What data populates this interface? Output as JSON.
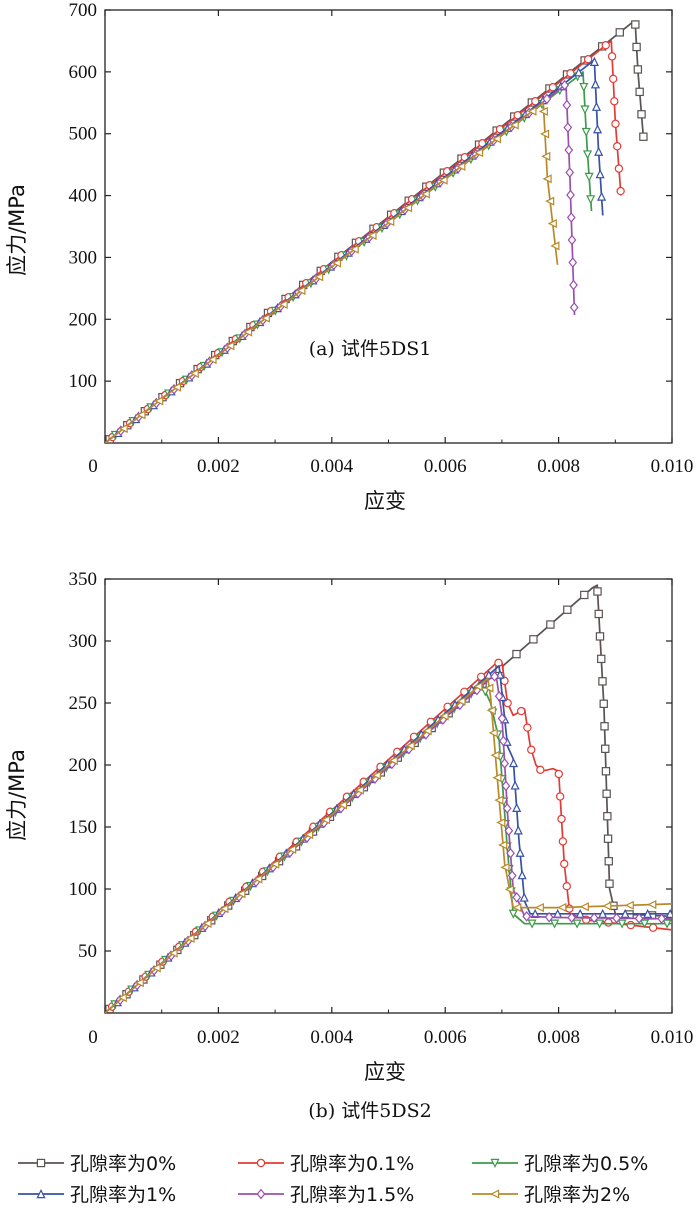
{
  "legend": [
    {
      "label": "孔隙率为0%",
      "color": "#5a5352",
      "marker": "square"
    },
    {
      "label": "孔隙率为0.1%",
      "color": "#e23b36",
      "marker": "circle"
    },
    {
      "label": "孔隙率为0.5%",
      "color": "#3c9a4a",
      "marker": "triangle-down"
    },
    {
      "label": "孔隙率为1%",
      "color": "#3651a8",
      "marker": "triangle-up"
    },
    {
      "label": "孔隙率为1.5%",
      "color": "#9a4fae",
      "marker": "diamond"
    },
    {
      "label": "孔隙率为2%",
      "color": "#b8892b",
      "marker": "triangle-left"
    }
  ],
  "chart_data": [
    {
      "type": "line",
      "caption": "(a) 试件5DS1",
      "xlabel": "应变",
      "ylabel": "应力/MPa",
      "xlim": [
        0,
        0.01
      ],
      "ylim": [
        0,
        700
      ],
      "xticks": [
        0,
        0.002,
        0.004,
        0.006,
        0.008,
        0.01
      ],
      "xtick_labels": [
        "0",
        "0.002",
        "0.004",
        "0.006",
        "0.008",
        "0.010"
      ],
      "yticks": [
        100,
        200,
        300,
        400,
        500,
        600,
        700
      ],
      "ytick_labels": [
        "100",
        "200",
        "300",
        "400",
        "500",
        "600",
        "700"
      ],
      "series": [
        {
          "name": "孔隙率为0%",
          "x": [
            0,
            0.0093,
            0.00935,
            0.0094,
            0.0095
          ],
          "y": [
            0,
            680,
            682,
            600,
            490
          ]
        },
        {
          "name": "孔隙率为0.1%",
          "x": [
            0,
            0.0089,
            0.00893,
            0.009,
            0.0091
          ],
          "y": [
            0,
            648,
            650,
            520,
            400
          ]
        },
        {
          "name": "孔隙率为0.5%",
          "x": [
            0,
            0.0084,
            0.00843,
            0.0085,
            0.00858
          ],
          "y": [
            0,
            597,
            600,
            480,
            375
          ]
        },
        {
          "name": "孔隙率为1%",
          "x": [
            0,
            0.0086,
            0.00863,
            0.0087,
            0.00878
          ],
          "y": [
            0,
            617,
            620,
            480,
            368
          ]
        },
        {
          "name": "孔隙率为1.5%",
          "x": [
            0,
            0.0081,
            0.00813,
            0.0082,
            0.00828
          ],
          "y": [
            0,
            578,
            580,
            430,
            207
          ]
        },
        {
          "name": "孔隙率为2%",
          "x": [
            0,
            0.0077,
            0.00773,
            0.0078,
            0.00798
          ],
          "y": [
            0,
            548,
            550,
            430,
            288
          ]
        }
      ]
    },
    {
      "type": "line",
      "caption": "(b) 试件5DS2",
      "xlabel": "应变",
      "ylabel": "应力/MPa",
      "xlim": [
        0,
        0.01
      ],
      "ylim": [
        0,
        350
      ],
      "xticks": [
        0,
        0.002,
        0.004,
        0.006,
        0.008,
        0.01
      ],
      "xtick_labels": [
        "0",
        "0.002",
        "0.004",
        "0.006",
        "0.008",
        "0.010"
      ],
      "yticks": [
        50,
        100,
        150,
        200,
        250,
        300,
        350
      ],
      "ytick_labels": [
        "50",
        "100",
        "150",
        "200",
        "250",
        "300",
        "350"
      ],
      "series": [
        {
          "name": "孔隙率为0%",
          "x": [
            0,
            0.0086,
            0.00868,
            0.0088,
            0.0089,
            0.009,
            0.01
          ],
          "y": [
            0,
            343,
            345,
            246,
            100,
            80,
            78
          ]
        },
        {
          "name": "孔隙率为0.1%",
          "x": [
            0,
            0.0069,
            0.007,
            0.0071,
            0.0072,
            0.0074,
            0.0075,
            0.0076,
            0.0077,
            0.0079,
            0.008,
            0.0081,
            0.0082,
            0.0085,
            0.01
          ],
          "y": [
            0,
            282,
            283,
            250,
            240,
            245,
            215,
            200,
            195,
            197,
            195,
            120,
            80,
            75,
            67
          ]
        },
        {
          "name": "孔隙率为0.5%",
          "x": [
            0,
            0.0066,
            0.00665,
            0.0068,
            0.00695,
            0.0071,
            0.0072,
            0.0074,
            0.008,
            0.01
          ],
          "y": [
            0,
            263,
            265,
            250,
            220,
            130,
            80,
            72,
            72,
            72
          ]
        },
        {
          "name": "孔隙率为1%",
          "x": [
            0,
            0.0069,
            0.00695,
            0.0071,
            0.0072,
            0.0073,
            0.0074,
            0.0075,
            0.008,
            0.01
          ],
          "y": [
            0,
            278,
            280,
            215,
            205,
            140,
            90,
            80,
            80,
            80
          ]
        },
        {
          "name": "孔隙率为1.5%",
          "x": [
            0,
            0.0068,
            0.0069,
            0.007,
            0.0071,
            0.0072,
            0.0074,
            0.008,
            0.01
          ],
          "y": [
            0,
            270,
            272,
            240,
            160,
            100,
            78,
            77,
            76
          ]
        },
        {
          "name": "孔隙率为2%",
          "x": [
            0,
            0.0067,
            0.00675,
            0.0068,
            0.0069,
            0.00705,
            0.0072,
            0.008,
            0.01
          ],
          "y": [
            0,
            268,
            270,
            255,
            200,
            120,
            85,
            85,
            88
          ]
        }
      ]
    }
  ]
}
